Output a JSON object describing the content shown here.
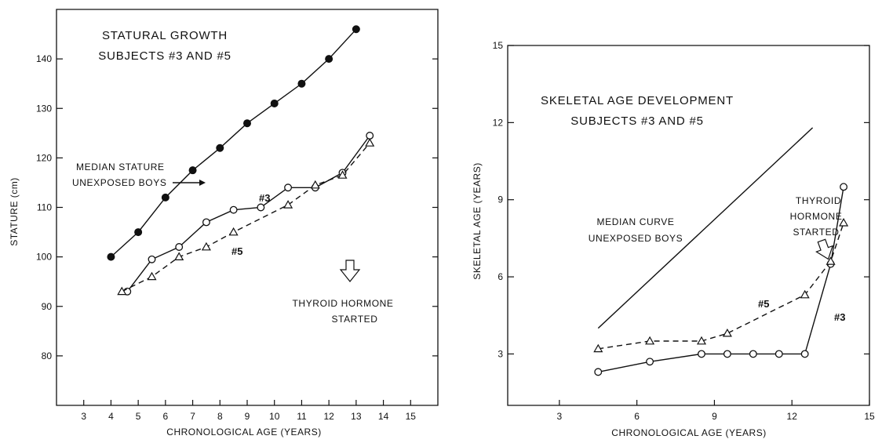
{
  "chart_data": [
    {
      "type": "line",
      "title": [
        "STATURAL GROWTH",
        "SUBJECTS #3 AND #5"
      ],
      "xlabel": "CHRONOLOGICAL AGE (YEARS)",
      "ylabel": "STATURE (cm)",
      "xlim": [
        2,
        16
      ],
      "ylim": [
        70,
        150
      ],
      "xticks": [
        3,
        4,
        5,
        6,
        7,
        8,
        9,
        10,
        11,
        12,
        13,
        14,
        15
      ],
      "xticklabels": [
        "3",
        "4",
        "5",
        "6",
        "7",
        "8",
        "9",
        "10",
        "11",
        "12",
        "13",
        "14",
        "15"
      ],
      "yticks": [
        80,
        90,
        100,
        110,
        120,
        130,
        140
      ],
      "yticklabels": [
        "80",
        "90",
        "100",
        "110",
        "120",
        "130",
        "140"
      ],
      "series": [
        {
          "name": "MEDIAN STATURE UNEXPOSED BOYS",
          "style": "solid",
          "marker": "filled-circle",
          "x": [
            4,
            5,
            6,
            7,
            8,
            9,
            10,
            11,
            12,
            13
          ],
          "y": [
            100,
            105,
            112,
            117.5,
            122,
            127,
            131,
            135,
            140,
            146
          ]
        },
        {
          "name": "#3",
          "style": "solid",
          "marker": "open-circle",
          "x": [
            4.6,
            5.5,
            6.5,
            7.5,
            8.5,
            9.5,
            10.5,
            11.5,
            12.5,
            13.5
          ],
          "y": [
            93,
            99.5,
            102,
            107,
            109.5,
            110,
            114,
            114,
            117,
            124.5
          ]
        },
        {
          "name": "#5",
          "style": "dashed",
          "marker": "open-triangle",
          "x": [
            4.4,
            5.5,
            6.5,
            7.5,
            8.5,
            10.5,
            11.5,
            12.5,
            13.5
          ],
          "y": [
            93,
            96,
            100,
            102,
            105,
            110.5,
            114.5,
            116.5,
            123
          ]
        }
      ],
      "annotations": {
        "median_label": [
          "MEDIAN STATURE",
          "UNEXPOSED BOYS"
        ],
        "label_3": "#3",
        "label_5": "#5",
        "hormone": [
          "THYROID HORMONE",
          "STARTED"
        ],
        "hormone_arrow_icon": "hatched-down-arrow-icon"
      }
    },
    {
      "type": "line",
      "title": [
        "SKELETAL AGE DEVELOPMENT",
        "SUBJECTS #3 AND #5"
      ],
      "xlabel": "CHRONOLOGICAL AGE (YEARS)",
      "ylabel": "SKELETAL AGE (YEARS)",
      "xlim": [
        1,
        15
      ],
      "ylim": [
        1,
        15
      ],
      "xticks": [
        3,
        6,
        9,
        12,
        15
      ],
      "xticklabels": [
        "3",
        "6",
        "9",
        "12",
        "15"
      ],
      "yticks": [
        3,
        6,
        9,
        12,
        15
      ],
      "yticklabels": [
        "3",
        "6",
        "9",
        "12",
        "15"
      ],
      "series": [
        {
          "name": "MEDIAN CURVE UNEXPOSED BOYS",
          "style": "solid",
          "marker": "none",
          "x": [
            4.5,
            12.8
          ],
          "y": [
            4,
            11.8
          ]
        },
        {
          "name": "#3",
          "style": "solid",
          "marker": "open-circle",
          "x": [
            4.5,
            6.5,
            8.5,
            9.5,
            10.5,
            11.5,
            12.5,
            13.5,
            14
          ],
          "y": [
            2.3,
            2.7,
            3,
            3,
            3,
            3,
            3,
            6.5,
            9.5
          ]
        },
        {
          "name": "#5",
          "style": "dashed",
          "marker": "open-triangle",
          "x": [
            4.5,
            6.5,
            8.5,
            9.5,
            12.5,
            13.5,
            14
          ],
          "y": [
            3.2,
            3.5,
            3.5,
            3.8,
            5.3,
            6.6,
            8.1
          ]
        }
      ],
      "annotations": {
        "median_label": [
          "MEDIAN CURVE",
          "UNEXPOSED BOYS"
        ],
        "label_3": "#3",
        "label_5": "#5",
        "hormone": [
          "THYROID",
          "HORMONE",
          "STARTED"
        ],
        "hormone_arrow_icon": "hatched-down-arrow-icon"
      }
    }
  ]
}
